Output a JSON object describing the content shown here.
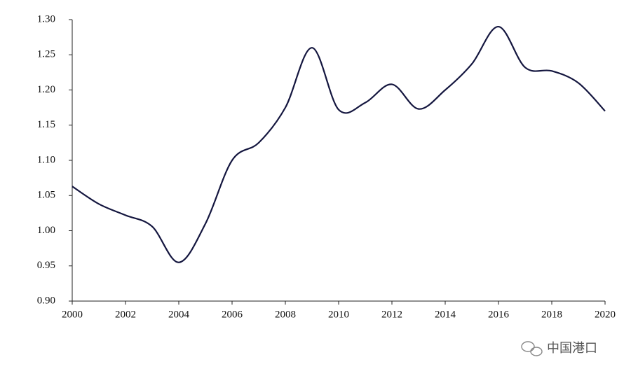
{
  "chart_data": {
    "type": "line",
    "x": [
      2000,
      2001,
      2002,
      2003,
      2004,
      2005,
      2006,
      2007,
      2008,
      2009,
      2010,
      2011,
      2012,
      2013,
      2014,
      2015,
      2016,
      2017,
      2018,
      2019,
      2020
    ],
    "series": [
      {
        "color": "#14163f",
        "values": [
          1.063,
          1.038,
          1.022,
          1.006,
          0.955,
          1.01,
          1.1,
          1.125,
          1.175,
          1.26,
          1.172,
          1.182,
          1.208,
          1.173,
          1.2,
          1.237,
          1.29,
          1.232,
          1.227,
          1.21,
          1.17
        ]
      }
    ],
    "xlim": [
      2000,
      2020
    ],
    "xticks": [
      2000,
      2002,
      2004,
      2006,
      2008,
      2010,
      2012,
      2014,
      2016,
      2018,
      2020
    ],
    "ylim": [
      0.9,
      1.3
    ],
    "yticks": [
      {
        "value": 0.9,
        "label": "0.90"
      },
      0.95,
      {
        "value": 1.0,
        "label": "1.00"
      },
      1.05,
      {
        "value": 1.1,
        "label": "1.10"
      },
      1.15,
      {
        "value": 1.2,
        "label": "1.20"
      },
      1.25,
      {
        "value": 1.3,
        "label": "1.30"
      }
    ],
    "smooth": true,
    "watermark": "中国港口"
  }
}
